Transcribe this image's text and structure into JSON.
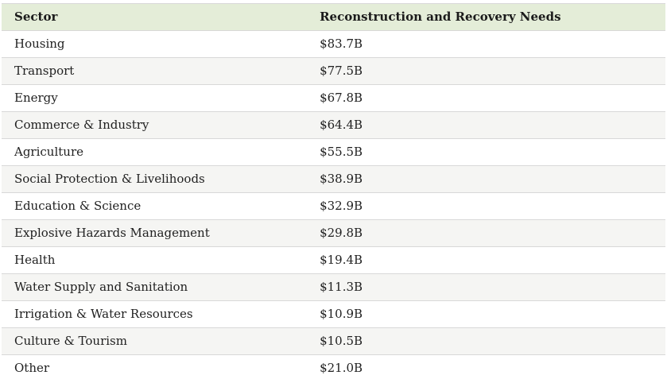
{
  "colors": {
    "header_bg": "#e4edd8",
    "row_alt_bg": "#f5f5f3",
    "border": "#d8d8d8",
    "text": "#212121",
    "header_text": "#1b1b1b"
  },
  "table": {
    "columns": [
      {
        "label": "Sector"
      },
      {
        "label": "Reconstruction and Recovery Needs"
      }
    ],
    "rows": [
      {
        "sector": "Housing",
        "value": "$83.7B"
      },
      {
        "sector": "Transport",
        "value": "$77.5B"
      },
      {
        "sector": "Energy",
        "value": "$67.8B"
      },
      {
        "sector": "Commerce & Industry",
        "value": "$64.4B"
      },
      {
        "sector": "Agriculture",
        "value": "$55.5B"
      },
      {
        "sector": "Social Protection & Livelihoods",
        "value": "$38.9B"
      },
      {
        "sector": "Education & Science",
        "value": "$32.9B"
      },
      {
        "sector": "Explosive Hazards Management",
        "value": "$29.8B"
      },
      {
        "sector": "Health",
        "value": "$19.4B"
      },
      {
        "sector": "Water Supply and Sanitation",
        "value": "$11.3B"
      },
      {
        "sector": "Irrigation & Water Resources",
        "value": "$10.9B"
      },
      {
        "sector": "Culture & Tourism",
        "value": "$10.5B"
      },
      {
        "sector": "Other",
        "value": "$21.0B"
      }
    ]
  },
  "chart_data": {
    "type": "table",
    "title": "",
    "columns": [
      "Sector",
      "Reconstruction and Recovery Needs"
    ],
    "categories": [
      "Housing",
      "Transport",
      "Energy",
      "Commerce & Industry",
      "Agriculture",
      "Social Protection & Livelihoods",
      "Education & Science",
      "Explosive Hazards Management",
      "Health",
      "Water Supply and Sanitation",
      "Irrigation & Water Resources",
      "Culture & Tourism",
      "Other"
    ],
    "values_billions_usd": [
      83.7,
      77.5,
      67.8,
      64.4,
      55.5,
      38.9,
      32.9,
      29.8,
      19.4,
      11.3,
      10.9,
      10.5,
      21.0
    ],
    "value_labels": [
      "$83.7B",
      "$77.5B",
      "$67.8B",
      "$64.4B",
      "$55.5B",
      "$38.9B",
      "$32.9B",
      "$29.8B",
      "$19.4B",
      "$11.3B",
      "$10.9B",
      "$10.5B",
      "$21.0B"
    ]
  }
}
